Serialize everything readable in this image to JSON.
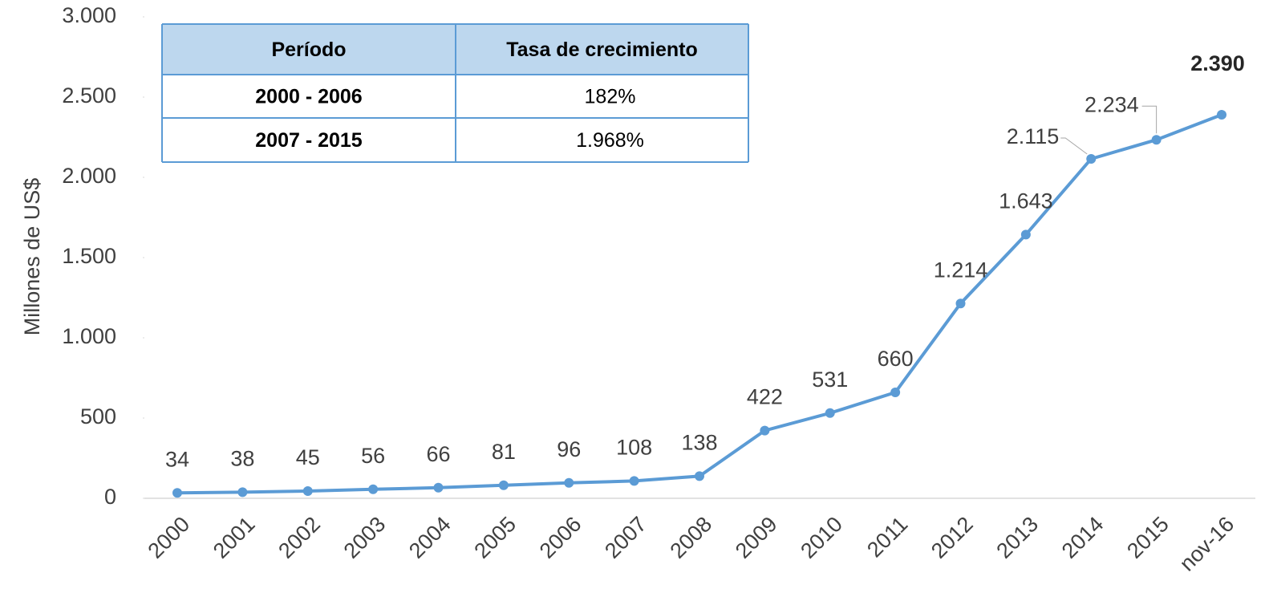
{
  "chart_data": {
    "type": "line",
    "y_label": "Millones de US$",
    "categories": [
      "2000",
      "2001",
      "2002",
      "2003",
      "2004",
      "2005",
      "2006",
      "2007",
      "2008",
      "2009",
      "2010",
      "2011",
      "2012",
      "2013",
      "2014",
      "2015",
      "nov-16"
    ],
    "series": [
      {
        "color": "#5b9bd5",
        "values": [
          34,
          38,
          45,
          56,
          66,
          81,
          96,
          108,
          138,
          422,
          531,
          660,
          1214,
          1643,
          2115,
          2234,
          2390
        ],
        "value_labels": [
          "34",
          "38",
          "45",
          "56",
          "66",
          "81",
          "96",
          "108",
          "138",
          "422",
          "531",
          "660",
          "1.214",
          "1.643",
          "2.115",
          "2.234",
          "2.390"
        ]
      }
    ],
    "ylim": [
      0,
      3000
    ],
    "yticks": [
      0,
      500,
      {
        "value": 1000,
        "label": "1.000"
      },
      {
        "value": 1500,
        "label": "1.500"
      },
      {
        "value": 2000,
        "label": "2.000"
      },
      {
        "value": 2500,
        "label": "2.500"
      },
      {
        "value": 3000,
        "label": "3.000"
      }
    ],
    "table": {
      "headers": [
        "Período",
        "Tasa de crecimiento"
      ],
      "rows": [
        [
          "2000 - 2006",
          "182%"
        ],
        [
          "2007 - 2015",
          "1.968%"
        ]
      ]
    }
  }
}
